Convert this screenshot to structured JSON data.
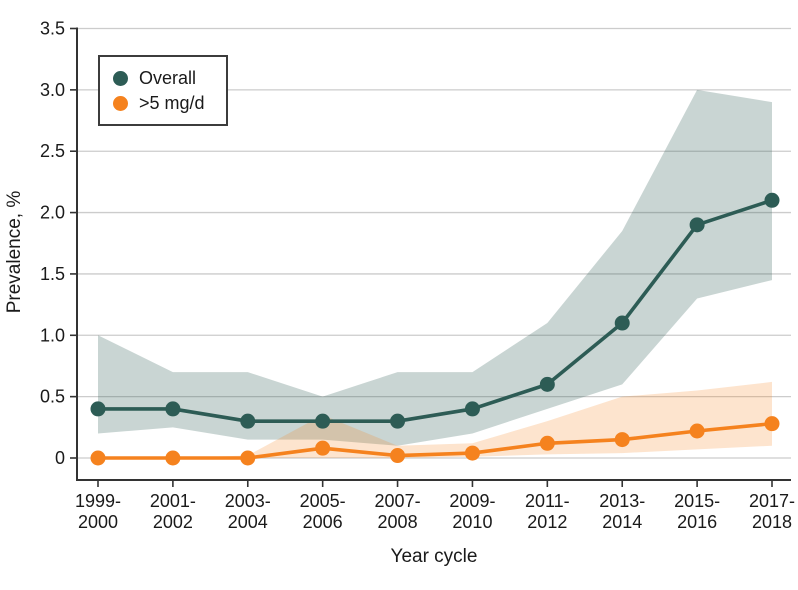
{
  "chart_data": {
    "type": "line",
    "title": "",
    "xlabel": "Year cycle",
    "ylabel": "Prevalence, %",
    "ylim": [
      0,
      3.5
    ],
    "yticks": [
      0,
      0.5,
      1.0,
      1.5,
      2.0,
      2.5,
      3.0,
      3.5
    ],
    "ytick_labels": [
      "0",
      "0.5",
      "1.0",
      "1.5",
      "2.0",
      "2.5",
      "3.0",
      "3.5"
    ],
    "grid": true,
    "legend_position": "top-left",
    "categories": [
      "1999-2000",
      "2001-2002",
      "2003-2004",
      "2005-2006",
      "2007-2008",
      "2009-2010",
      "2011-2012",
      "2013-2014",
      "2015-2016",
      "2017-2018"
    ],
    "series": [
      {
        "name": "Overall",
        "color": "#2D5C55",
        "band_opacity": 0.26,
        "values": [
          0.4,
          0.4,
          0.3,
          0.3,
          0.3,
          0.4,
          0.6,
          1.1,
          1.9,
          2.1
        ],
        "ci_lower": [
          0.2,
          0.25,
          0.15,
          0.15,
          0.1,
          0.2,
          0.4,
          0.6,
          1.3,
          1.45
        ],
        "ci_upper": [
          1.0,
          0.7,
          0.7,
          0.5,
          0.7,
          0.7,
          1.1,
          1.85,
          3.0,
          2.9
        ]
      },
      {
        "name": ">5 mg/d",
        "color": "#F5821E",
        "band_opacity": 0.22,
        "values": [
          0.0,
          0.0,
          0.0,
          0.08,
          0.02,
          0.04,
          0.12,
          0.15,
          0.22,
          0.28
        ],
        "ci_lower": [
          0.0,
          0.0,
          0.0,
          0.0,
          0.0,
          0.01,
          0.03,
          0.04,
          0.07,
          0.1
        ],
        "ci_upper": [
          0.0,
          0.0,
          0.02,
          0.35,
          0.1,
          0.12,
          0.3,
          0.5,
          0.55,
          0.62
        ]
      }
    ],
    "colors": {
      "grid": "#cccccc",
      "axis": "#333333",
      "text": "#1a1a1a"
    }
  }
}
